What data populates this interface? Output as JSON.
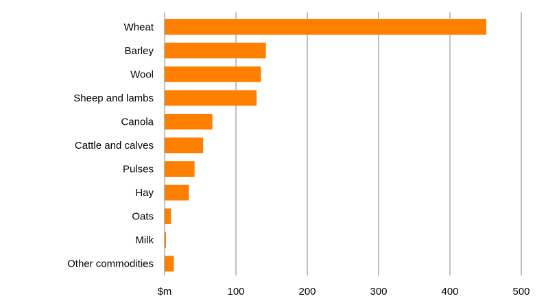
{
  "chart_data": {
    "type": "bar",
    "orientation": "horizontal",
    "categories": [
      "Wheat",
      "Barley",
      "Wool",
      "Sheep and lambs",
      "Canola",
      "Cattle and calves",
      "Pulses",
      "Hay",
      "Oats",
      "Milk",
      "Other commodities"
    ],
    "values": [
      451,
      142,
      135,
      129,
      67,
      54,
      42,
      34,
      9,
      2,
      13
    ],
    "xlim": [
      0,
      500
    ],
    "xticks": [
      0,
      100,
      200,
      300,
      400,
      500
    ],
    "xtick_labels": [
      "$m",
      "100",
      "200",
      "300",
      "400",
      "500"
    ],
    "grid": true,
    "colors": {
      "bar": "#FF7F00",
      "grid": "#808080",
      "axis": "#808080"
    }
  }
}
